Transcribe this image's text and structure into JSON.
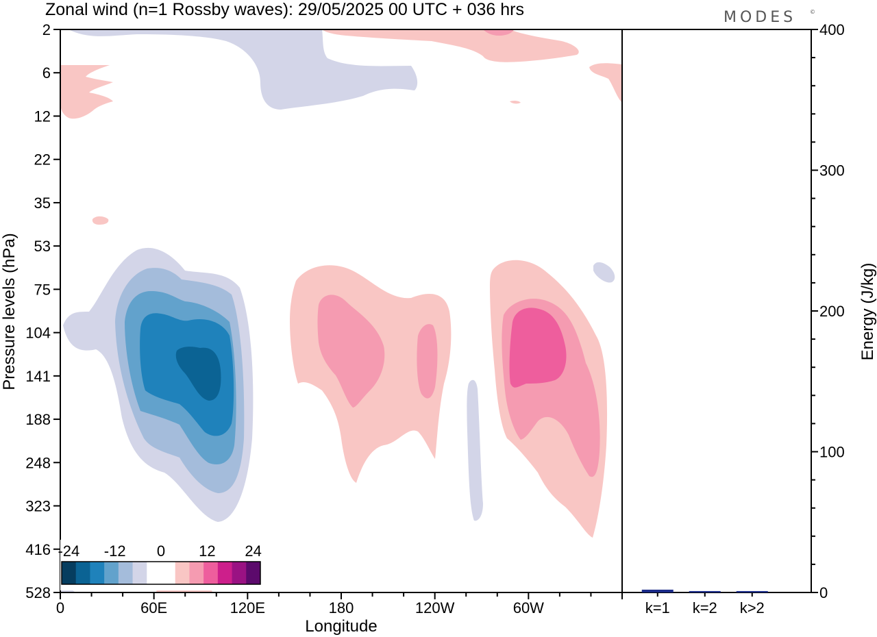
{
  "header": {
    "title": "Zonal wind (n=1 Rossby waves):  29/05/2025  00 UTC  + 036 hrs",
    "brand": "MODES",
    "brand_mark": "©"
  },
  "colors": {
    "neg": [
      "#063d5f",
      "#0b6394",
      "#1f82bb",
      "#62a2cc",
      "#a4bcdb",
      "#d3d5e8"
    ],
    "neutral": "#ffffff",
    "pos": [
      "#f9c6c4",
      "#f59bb1",
      "#ee5e9d",
      "#cd1f8b",
      "#9a1283",
      "#5c0a6c"
    ],
    "bar": "#1a2a88",
    "frame": "#000000"
  },
  "chart_data": [
    {
      "type": "heatmap",
      "title": "Zonal wind (n=1 Rossby waves):  29/05/2025  00 UTC  + 036 hrs",
      "xlabel": "Longitude",
      "ylabel": "Pressure levels (hPa)",
      "x_ticks": [
        "0",
        "60E",
        "120E",
        "180",
        "120W",
        "60W"
      ],
      "y_ticks": [
        "2",
        "6",
        "12",
        "22",
        "35",
        "53",
        "75",
        "104",
        "141",
        "188",
        "248",
        "323",
        "416",
        "528"
      ],
      "colorbar": {
        "labels": [
          "-24",
          "-12",
          "0",
          "12",
          "24"
        ],
        "levels": [
          -24,
          -20,
          -16,
          -12,
          -8,
          -4,
          0,
          4,
          8,
          12,
          16,
          20,
          24
        ]
      },
      "features": [
        {
          "sign": "negative",
          "lon": 100,
          "level": "141",
          "peak": -18
        },
        {
          "sign": "positive",
          "lon": 193,
          "level": "104",
          "peak": 8
        },
        {
          "sign": "positive",
          "lon": 233,
          "level": "141",
          "peak": 6
        },
        {
          "sign": "positive",
          "lon": 311,
          "level": "141",
          "peak": 12
        },
        {
          "sign": "negative",
          "lon": 35,
          "level": "2",
          "peak": -2
        },
        {
          "sign": "positive",
          "lon": 284,
          "level": "2",
          "peak": 6
        }
      ]
    },
    {
      "type": "bar",
      "ylabel": "Energy (J/kg)",
      "categories": [
        "k=1",
        "k=2",
        "k>2"
      ],
      "values": [
        2,
        1,
        1
      ],
      "ylim": [
        0,
        400
      ],
      "y_ticks": [
        "0",
        "100",
        "200",
        "300",
        "400"
      ]
    }
  ]
}
